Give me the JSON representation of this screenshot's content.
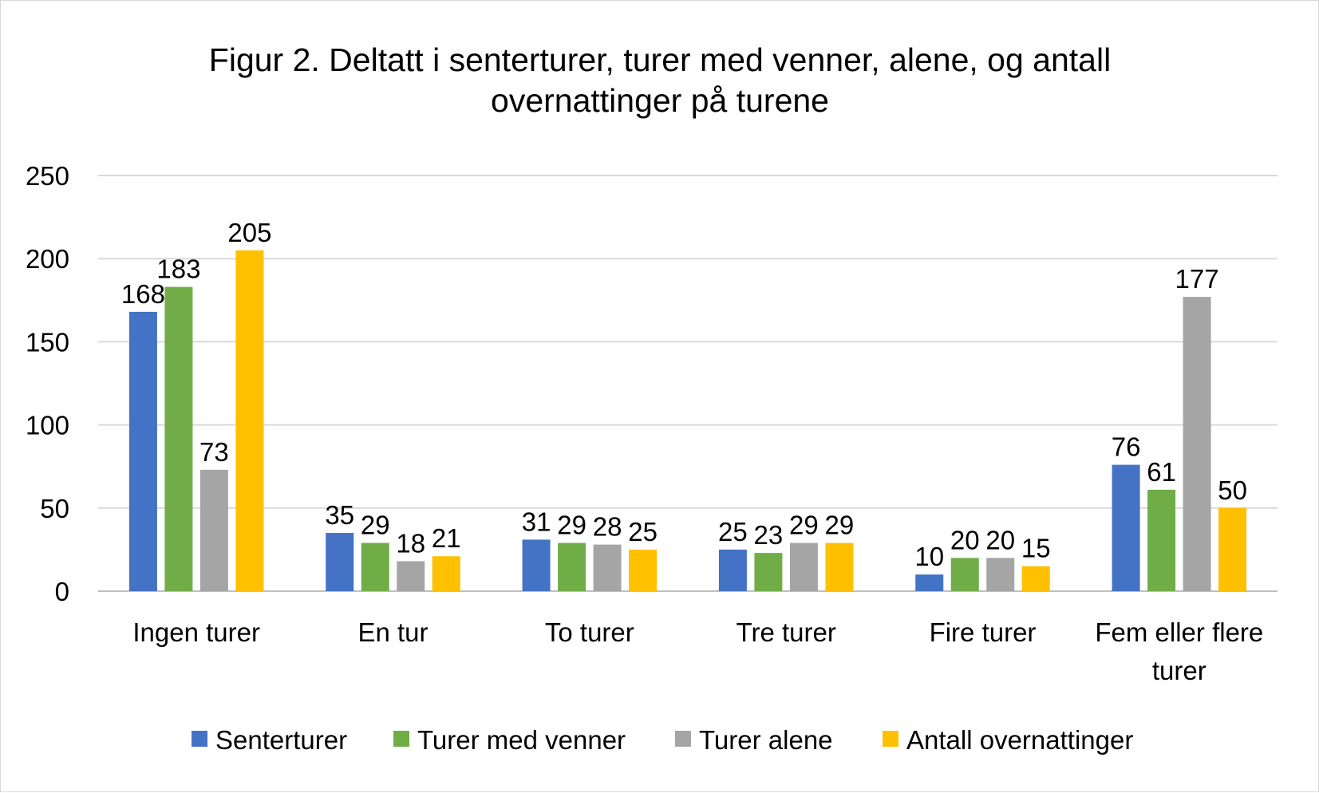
{
  "chart_data": {
    "type": "bar",
    "title_lines": [
      "Figur 2. Deltatt i senterturer, turer med venner, alene, og antall",
      "overnattinger på turene"
    ],
    "categories": [
      [
        "Ingen turer"
      ],
      [
        "En tur"
      ],
      [
        "To turer"
      ],
      [
        "Tre turer"
      ],
      [
        "Fire turer"
      ],
      [
        "Fem eller flere",
        "turer"
      ]
    ],
    "series": [
      {
        "name": "Senterturer",
        "color": "#4472C4",
        "values": [
          168,
          35,
          31,
          25,
          10,
          76
        ]
      },
      {
        "name": "Turer med venner",
        "color": "#70AD47",
        "values": [
          183,
          29,
          29,
          23,
          20,
          61
        ]
      },
      {
        "name": "Turer alene",
        "color": "#A5A5A5",
        "values": [
          73,
          18,
          28,
          29,
          20,
          177
        ]
      },
      {
        "name": "Antall overnattinger",
        "color": "#FFC000",
        "values": [
          205,
          21,
          25,
          29,
          15,
          50
        ]
      }
    ],
    "yticks": [
      0,
      50,
      100,
      150,
      200,
      250
    ],
    "ylim": [
      0,
      250
    ],
    "grid": true,
    "legend_position": "bottom",
    "data_labels": true
  }
}
